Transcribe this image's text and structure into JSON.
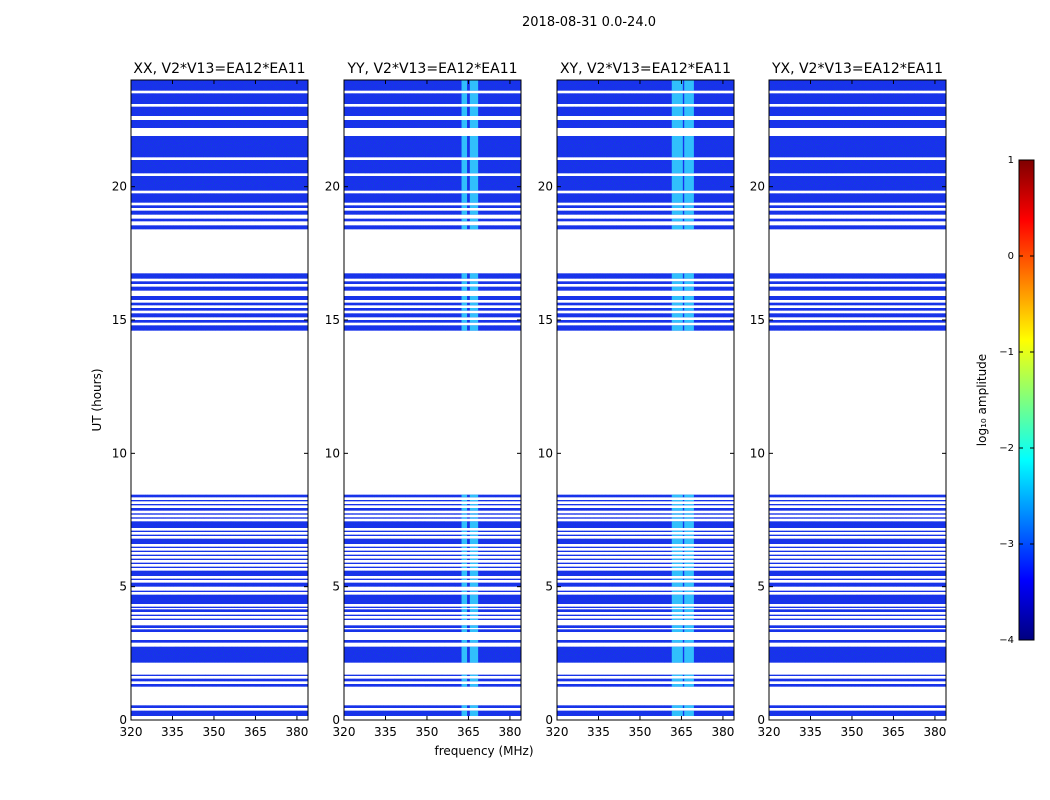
{
  "figure": {
    "suptitle": "2018-08-31 0.0-24.0"
  },
  "chart_data": [
    {
      "type": "heatmap",
      "title": "XX, V2*V13=EA12*EA11",
      "xlabel": "",
      "ylabel": "UT (hours)",
      "x_ticks": [
        "320",
        "335",
        "350",
        "365",
        "380"
      ],
      "y_ticks": [
        "0",
        "5",
        "10",
        "15",
        "20"
      ],
      "xlim": [
        320,
        384
      ],
      "ylim": [
        0,
        24
      ],
      "rfi_columns": []
    },
    {
      "type": "heatmap",
      "title": "YY, V2*V13=EA12*EA11",
      "xlabel": "frequency (MHz)",
      "ylabel": "",
      "x_ticks": [
        "320",
        "335",
        "350",
        "365",
        "380"
      ],
      "y_ticks": [
        "0",
        "5",
        "10",
        "15",
        "20"
      ],
      "xlim": [
        320,
        384
      ],
      "ylim": [
        0,
        24
      ],
      "rfi_columns": [
        [
          362.5,
          364.5
        ],
        [
          365.5,
          368.5
        ]
      ]
    },
    {
      "type": "heatmap",
      "title": "XY, V2*V13=EA12*EA11",
      "xlabel": "",
      "ylabel": "",
      "x_ticks": [
        "320",
        "335",
        "350",
        "365",
        "380"
      ],
      "y_ticks": [
        "0",
        "5",
        "10",
        "15",
        "20"
      ],
      "xlim": [
        320,
        384
      ],
      "ylim": [
        0,
        24
      ],
      "rfi_columns": [
        [
          361.5,
          365.5
        ],
        [
          366,
          369.5
        ]
      ]
    },
    {
      "type": "heatmap",
      "title": "YX, V2*V13=EA12*EA11",
      "xlabel": "",
      "ylabel": "",
      "x_ticks": [
        "320",
        "335",
        "350",
        "365",
        "380"
      ],
      "y_ticks": [
        "0",
        "5",
        "10",
        "15",
        "20"
      ],
      "xlim": [
        320,
        384
      ],
      "ylim": [
        0,
        24
      ],
      "rfi_columns": []
    }
  ],
  "data_bands_hours": [
    [
      0.15,
      0.35
    ],
    [
      0.45,
      0.55
    ],
    [
      1.25,
      1.35
    ],
    [
      1.45,
      1.55
    ],
    [
      1.65,
      1.7
    ],
    [
      2.15,
      2.75
    ],
    [
      2.9,
      3.0
    ],
    [
      3.3,
      3.4
    ],
    [
      3.45,
      3.55
    ],
    [
      3.75,
      3.8
    ],
    [
      3.9,
      3.95
    ],
    [
      4.05,
      4.15
    ],
    [
      4.2,
      4.25
    ],
    [
      4.35,
      4.7
    ],
    [
      4.8,
      4.85
    ],
    [
      5.0,
      5.15
    ],
    [
      5.25,
      5.3
    ],
    [
      5.4,
      5.6
    ],
    [
      5.7,
      5.75
    ],
    [
      5.85,
      5.9
    ],
    [
      6.0,
      6.05
    ],
    [
      6.15,
      6.2
    ],
    [
      6.3,
      6.35
    ],
    [
      6.45,
      6.5
    ],
    [
      6.6,
      6.8
    ],
    [
      6.9,
      6.95
    ],
    [
      7.05,
      7.1
    ],
    [
      7.2,
      7.45
    ],
    [
      7.55,
      7.6
    ],
    [
      7.7,
      7.75
    ],
    [
      7.85,
      7.95
    ],
    [
      8.05,
      8.1
    ],
    [
      8.2,
      8.25
    ],
    [
      8.35,
      8.45
    ],
    [
      14.6,
      14.8
    ],
    [
      14.9,
      15.0
    ],
    [
      15.1,
      15.25
    ],
    [
      15.35,
      15.45
    ],
    [
      15.55,
      15.65
    ],
    [
      15.75,
      15.9
    ],
    [
      16.1,
      16.25
    ],
    [
      16.35,
      16.45
    ],
    [
      16.55,
      16.75
    ],
    [
      18.4,
      18.55
    ],
    [
      18.7,
      18.8
    ],
    [
      18.95,
      19.1
    ],
    [
      19.2,
      19.3
    ],
    [
      19.4,
      19.75
    ],
    [
      19.85,
      20.4
    ],
    [
      20.5,
      21.0
    ],
    [
      21.1,
      21.9
    ],
    [
      22.2,
      22.5
    ],
    [
      22.65,
      23.0
    ],
    [
      23.1,
      23.5
    ],
    [
      23.6,
      24.0
    ]
  ],
  "colorbar": {
    "label": "log₁₀ amplitude",
    "ticks": [
      "1",
      "0",
      "−1",
      "−2",
      "−3",
      "−4"
    ],
    "range": [
      -4,
      1
    ],
    "colors": [
      "#00007f",
      "#0000ff",
      "#007fff",
      "#00ffff",
      "#7fff7f",
      "#ffff00",
      "#ff7f00",
      "#ff0000",
      "#7f0000"
    ]
  },
  "colors": {
    "data_fill": "#1a2ff0",
    "rfi_fill": "#36d8ff",
    "gap_fill": "#ffffff"
  }
}
